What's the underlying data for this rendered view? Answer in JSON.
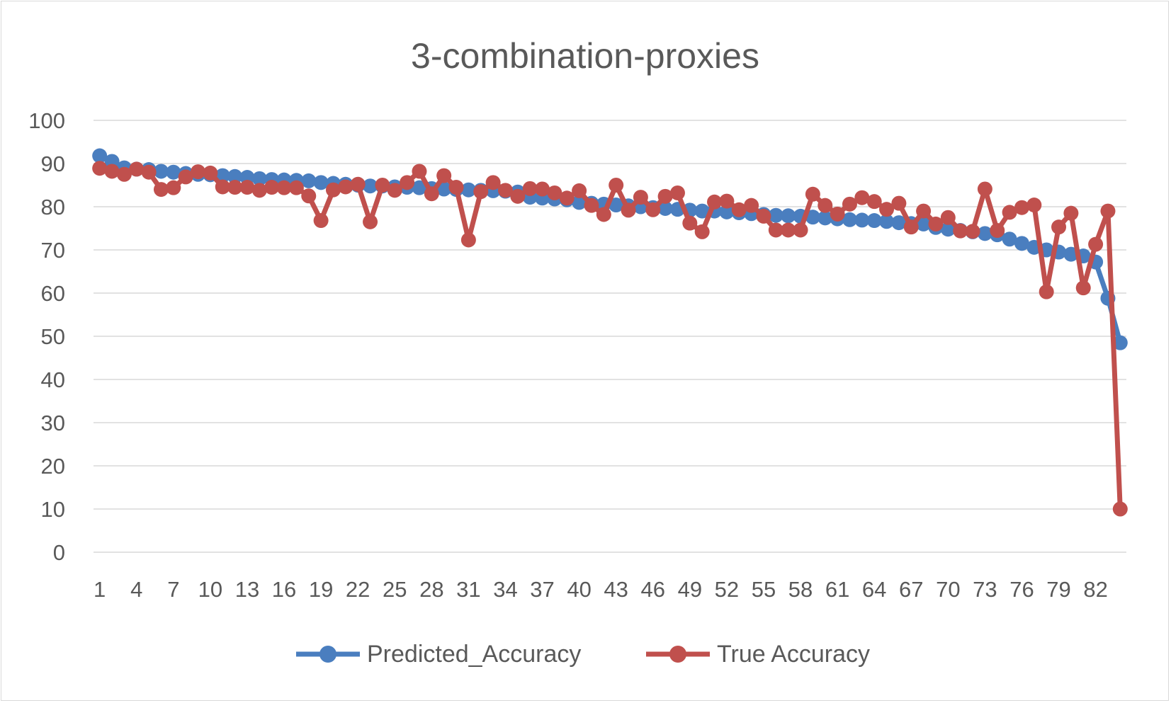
{
  "chart_data": {
    "type": "line",
    "title": "3-combination-proxies",
    "xlabel": "",
    "ylabel": "",
    "ylim": [
      0,
      100
    ],
    "yticks": [
      0,
      10,
      20,
      30,
      40,
      50,
      60,
      70,
      80,
      90,
      100
    ],
    "x": [
      1,
      2,
      3,
      4,
      5,
      6,
      7,
      8,
      9,
      10,
      11,
      12,
      13,
      14,
      15,
      16,
      17,
      18,
      19,
      20,
      21,
      22,
      23,
      24,
      25,
      26,
      27,
      28,
      29,
      30,
      31,
      32,
      33,
      34,
      35,
      36,
      37,
      38,
      39,
      40,
      41,
      42,
      43,
      44,
      45,
      46,
      47,
      48,
      49,
      50,
      51,
      52,
      53,
      54,
      55,
      56,
      57,
      58,
      59,
      60,
      61,
      62,
      63,
      64,
      65,
      66,
      67,
      68,
      69,
      70,
      71,
      72,
      73,
      74,
      75,
      76,
      77,
      78,
      79,
      80,
      81,
      82,
      83,
      84
    ],
    "xtick_labels": [
      "1",
      "4",
      "7",
      "10",
      "13",
      "16",
      "19",
      "22",
      "25",
      "28",
      "31",
      "34",
      "37",
      "40",
      "43",
      "46",
      "49",
      "52",
      "55",
      "58",
      "61",
      "64",
      "67",
      "70",
      "73",
      "76",
      "79",
      "82"
    ],
    "grid": true,
    "legend_position": "bottom",
    "series": [
      {
        "name": "Predicted_Accuracy",
        "color": "#4a7ebf",
        "values": [
          91.8,
          90.5,
          89.0,
          88.7,
          88.6,
          88.2,
          88.0,
          87.7,
          87.5,
          87.4,
          87.2,
          87.0,
          86.8,
          86.5,
          86.3,
          86.2,
          86.1,
          86.0,
          85.6,
          85.4,
          85.2,
          85.0,
          84.8,
          84.8,
          84.6,
          84.5,
          84.4,
          84.2,
          84.1,
          84.0,
          83.9,
          83.8,
          83.7,
          83.6,
          83.4,
          82.2,
          82.0,
          81.8,
          81.6,
          81.0,
          80.8,
          80.6,
          80.4,
          80.2,
          80.0,
          79.8,
          79.6,
          79.4,
          79.2,
          79.0,
          79.0,
          78.8,
          78.6,
          78.4,
          78.2,
          78.0,
          77.9,
          77.8,
          77.6,
          77.4,
          77.2,
          77.0,
          76.9,
          76.8,
          76.6,
          76.3,
          76.1,
          76.0,
          75.2,
          74.8,
          74.5,
          74.2,
          73.8,
          73.5,
          72.5,
          71.5,
          70.6,
          70.0,
          69.5,
          69.0,
          68.6,
          67.2,
          58.8,
          48.5
        ]
      },
      {
        "name": "True Accuracy",
        "color": "#c0504d",
        "values": [
          88.9,
          88.2,
          87.5,
          88.7,
          88.0,
          84.0,
          84.4,
          86.9,
          88.1,
          87.8,
          84.6,
          84.5,
          84.5,
          83.8,
          84.5,
          84.4,
          84.4,
          82.5,
          76.8,
          83.9,
          84.6,
          85.2,
          76.5,
          85.0,
          83.8,
          85.6,
          88.2,
          83.0,
          87.2,
          84.5,
          72.3,
          83.5,
          85.6,
          83.8,
          82.4,
          84.2,
          84.1,
          83.2,
          82.0,
          83.7,
          80.3,
          78.2,
          85.0,
          79.2,
          82.2,
          79.3,
          82.4,
          83.2,
          76.2,
          74.2,
          81.1,
          81.3,
          79.3,
          80.3,
          77.8,
          74.6,
          74.6,
          74.6,
          82.9,
          80.3,
          78.3,
          80.6,
          82.1,
          81.2,
          79.4,
          80.8,
          75.3,
          79.0,
          76.0,
          77.5,
          74.4,
          74.3,
          84.1,
          74.5,
          78.7,
          79.8,
          80.4,
          60.3,
          75.3,
          78.5,
          61.2,
          71.3,
          79.0,
          10.0
        ]
      }
    ]
  }
}
